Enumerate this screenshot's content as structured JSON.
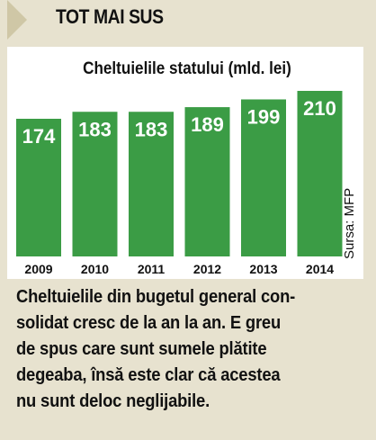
{
  "header": {
    "title": "TOT MAI SUS"
  },
  "source_label": "Sursa: MFP",
  "caption": {
    "lines": [
      "Cheltuielile din bugetul general con-",
      "solidat cresc de la an la an. E greu",
      "de spus care sunt sumele plătite",
      "degeaba, însă este clar că acestea",
      "nu sunt deloc neglijabile."
    ]
  },
  "colors": {
    "bar": "#3b9c45",
    "background": "#e7e2cf",
    "panel": "#ffffff",
    "text": "#111111",
    "label_on_bar": "#ffffff"
  },
  "chart_data": {
    "type": "bar",
    "title": "Cheltuielile statului (mld. lei)",
    "categories": [
      "2009",
      "2010",
      "2011",
      "2012",
      "2013",
      "2014"
    ],
    "values": [
      174,
      183,
      183,
      189,
      199,
      210
    ],
    "data_labels": [
      "174",
      "183",
      "183",
      "189",
      "199",
      "210"
    ],
    "grid": false,
    "legend": "none"
  }
}
